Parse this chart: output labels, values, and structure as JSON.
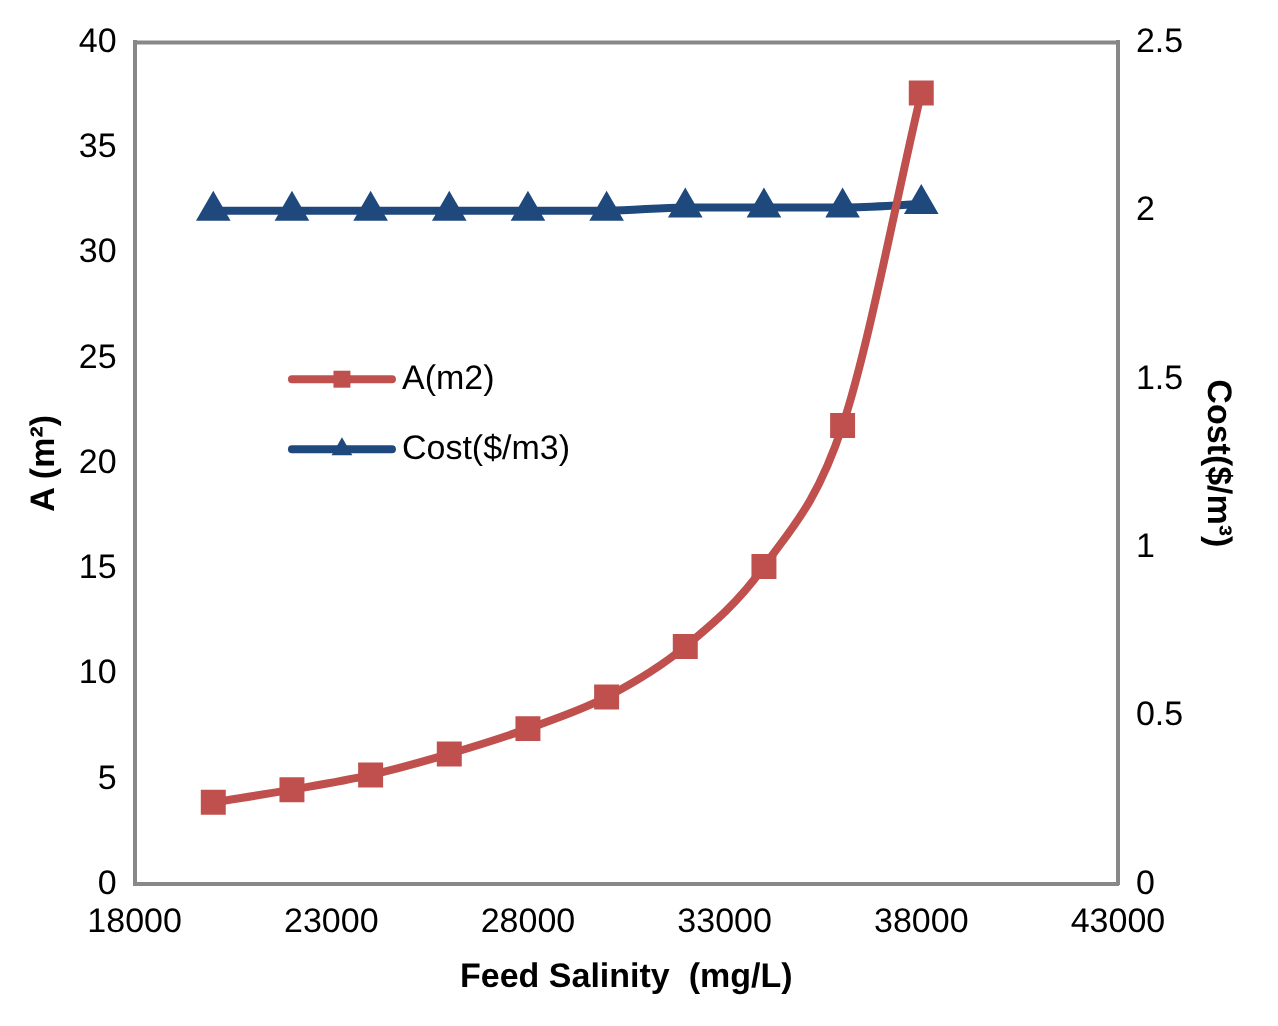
{
  "chart_data": {
    "type": "line",
    "xlabel": "Feed Salinity  (mg/L)",
    "ylabel": "A (m²)",
    "y2label": "Cost($/m³)",
    "x": [
      20000,
      22000,
      24000,
      26000,
      28000,
      30000,
      32000,
      34000,
      36000,
      38000
    ],
    "series": [
      {
        "name": "A(m2)",
        "color": "#c0504d",
        "marker": "square",
        "values": [
          3.9,
          4.5,
          5.2,
          6.2,
          7.4,
          8.9,
          11.3,
          15.1,
          21.8,
          37.6
        ]
      },
      {
        "name": "Cost($/m3)",
        "color": "#1f497d",
        "marker": "triangle",
        "axis": "y2",
        "values": [
          2,
          2,
          2,
          2,
          2,
          2,
          2.01,
          2.01,
          2.01,
          2.02
        ]
      }
    ],
    "xlim": [
      18000,
      43000
    ],
    "xticks": [
      18000,
      23000,
      28000,
      33000,
      38000,
      43000
    ],
    "ylim": [
      0,
      40
    ],
    "yticks": [
      0,
      5,
      10,
      15,
      20,
      25,
      30,
      35,
      40
    ],
    "y2lim": [
      0,
      2.5
    ],
    "y2ticks": [
      0,
      0.5,
      1,
      1.5,
      2,
      2.5
    ],
    "grid": false,
    "legend": "center left"
  }
}
